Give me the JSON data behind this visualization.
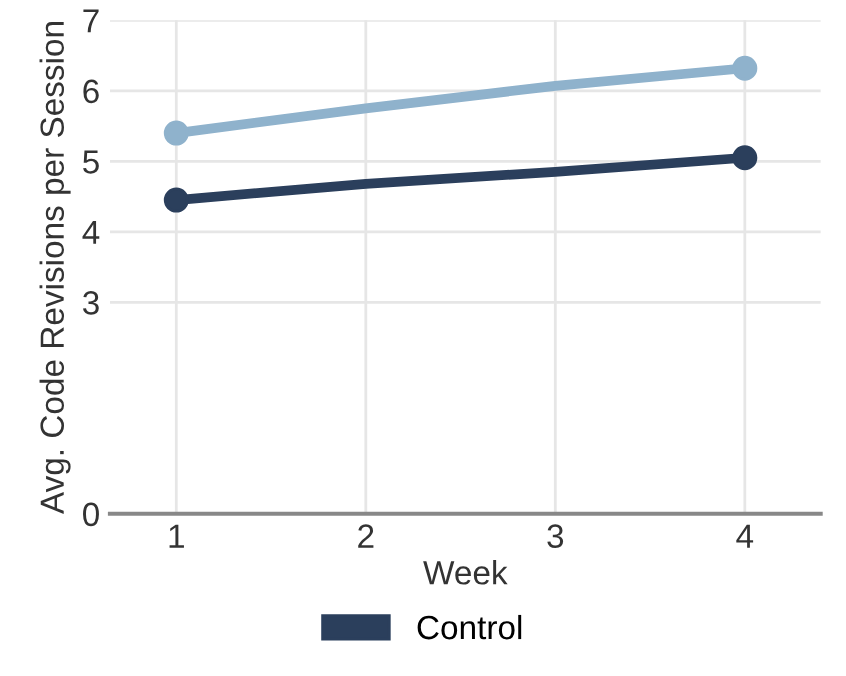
{
  "chart_data": {
    "type": "line",
    "xlabel": "Week",
    "ylabel": "Avg. Code Revisions per Session",
    "x": [
      1,
      2,
      3,
      4
    ],
    "xlim": [
      0.65,
      4.4
    ],
    "xticks": [
      1,
      2,
      3,
      4
    ],
    "ylim": [
      0,
      7
    ],
    "yticks": [
      0,
      3,
      4,
      5,
      6,
      7
    ],
    "grid": true,
    "legend": "bottom",
    "marker": "circle",
    "line_style": "solid",
    "series": [
      {
        "name": "Control",
        "color": "#2b3f5c",
        "values": [
          4.45,
          4.68,
          4.85,
          5.05
        ]
      },
      {
        "color": "#8fb2cc",
        "values": [
          5.4,
          5.75,
          6.07,
          6.32
        ]
      }
    ]
  }
}
